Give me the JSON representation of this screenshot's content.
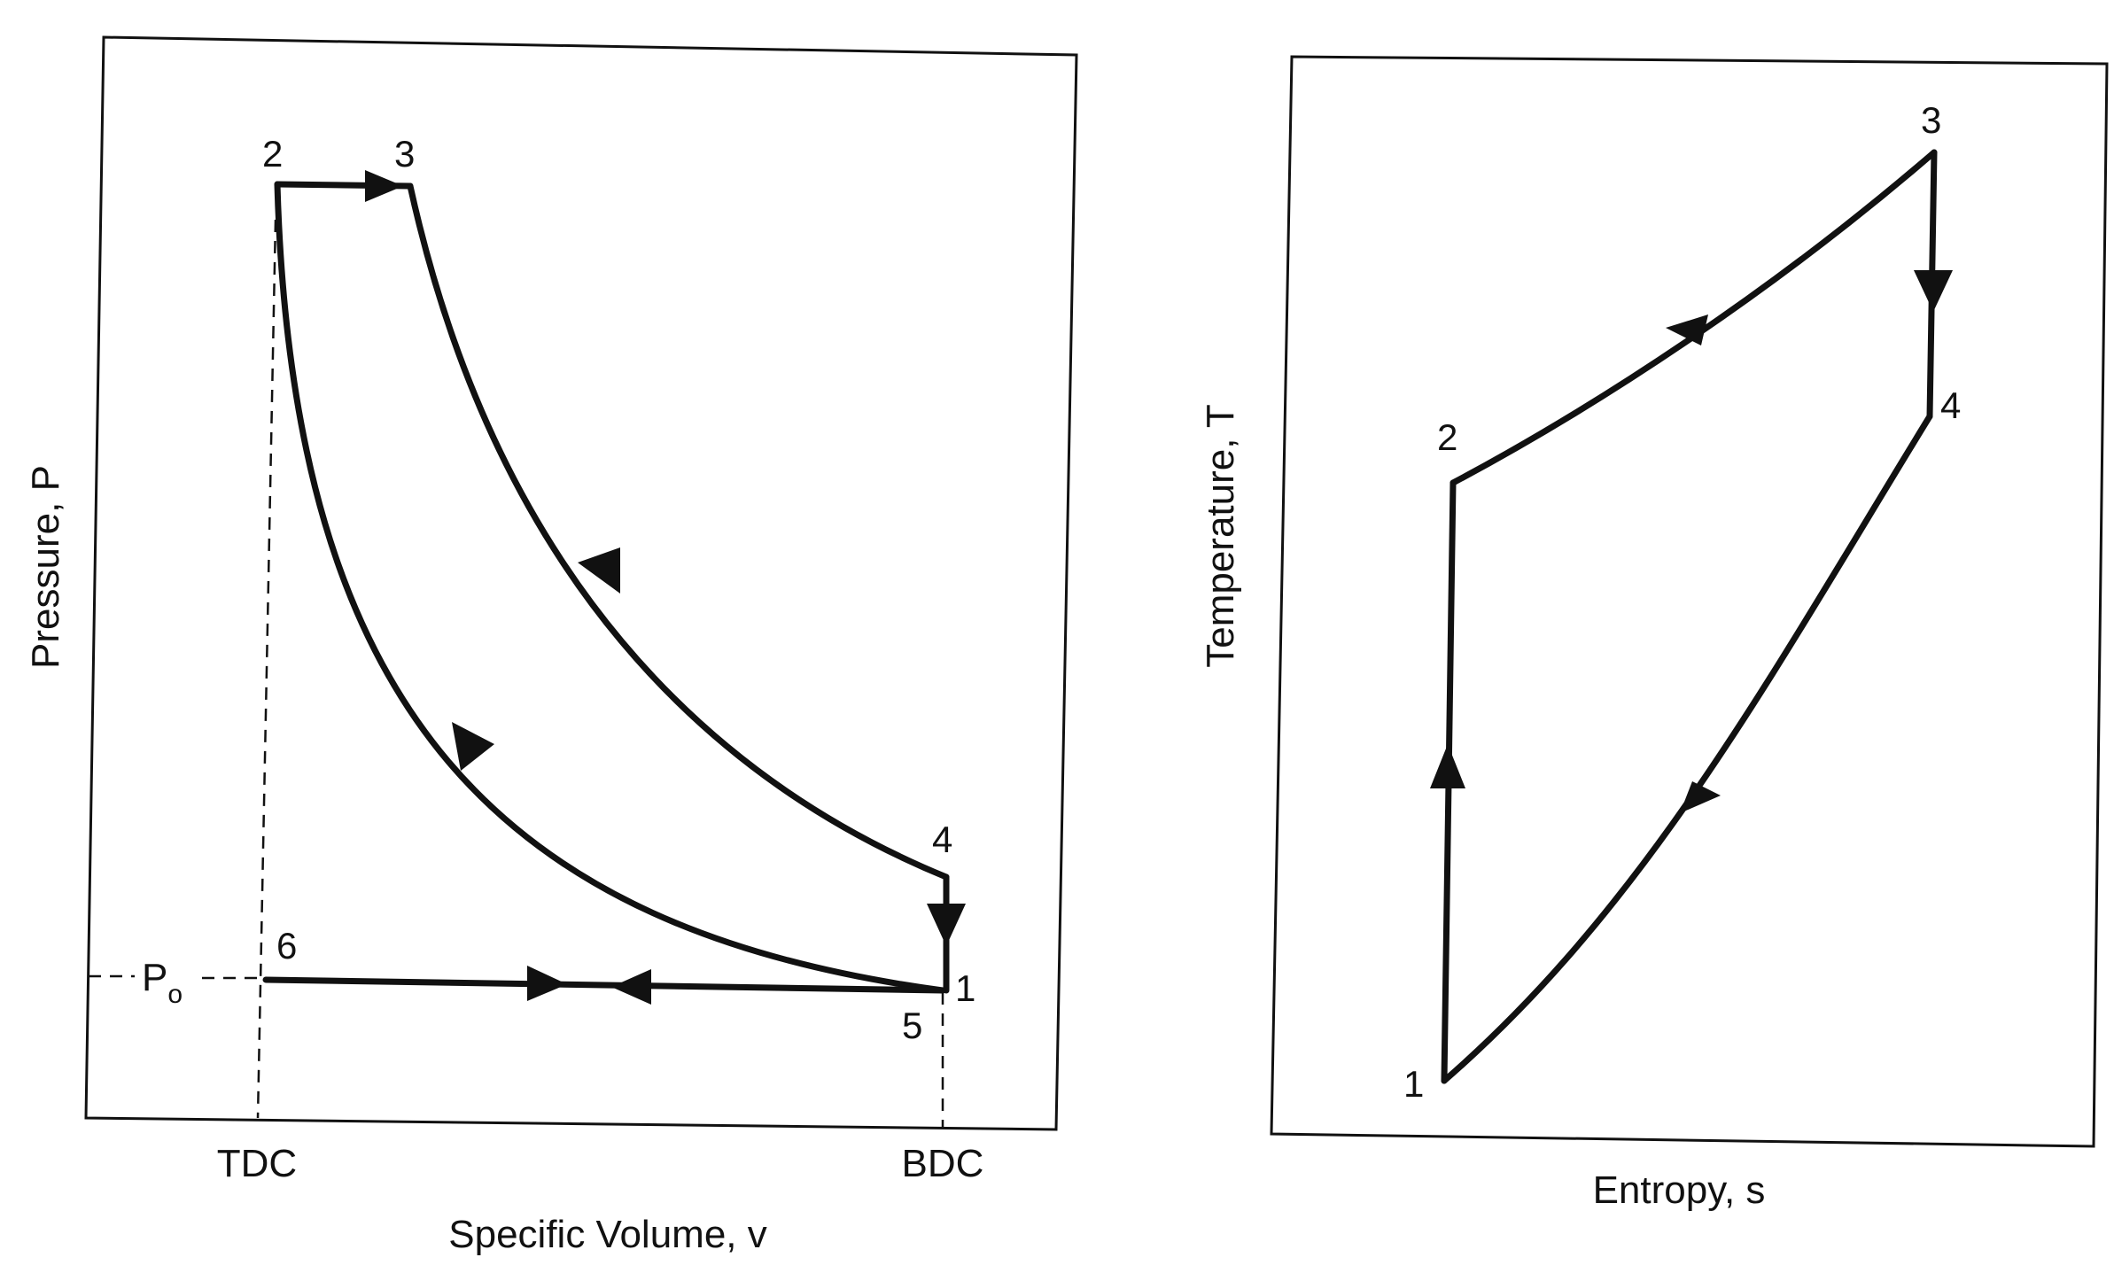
{
  "pv_diagram": {
    "y_axis_label": "Pressure, P",
    "x_axis_label": "Specific Volume, v",
    "x_ticks": [
      "TDC",
      "BDC"
    ],
    "pressure_marker": {
      "main": "P",
      "subscript": "o"
    },
    "points": [
      "2",
      "3",
      "4",
      "6",
      "1",
      "5"
    ]
  },
  "ts_diagram": {
    "y_axis_label": "Temperature, T",
    "x_axis_label": "Entropy, s",
    "points": [
      "3",
      "2",
      "4",
      "1"
    ]
  }
}
